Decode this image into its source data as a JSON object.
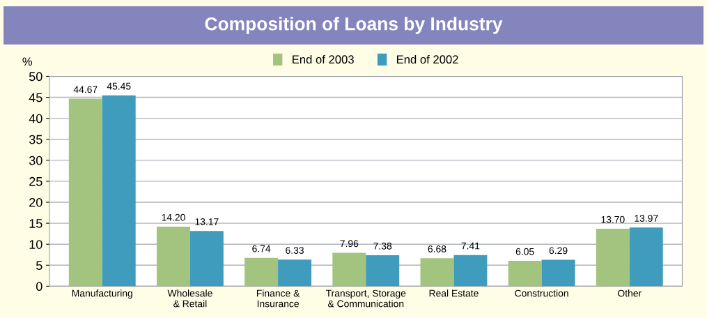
{
  "chart_data": {
    "type": "bar",
    "title": "Composition of Loans by Industry",
    "ylabel": "%",
    "categories": [
      "Manufacturing",
      "Wholesale\n& Retail",
      "Finance &\nInsurance",
      "Transport, Storage\n& Communication",
      "Real Estate",
      "Construction",
      "Other"
    ],
    "series": [
      {
        "name": "End of 2003",
        "color": "#a3c47f",
        "values": [
          44.67,
          14.2,
          6.74,
          7.96,
          6.68,
          6.05,
          13.7
        ],
        "value_labels": [
          "44.67",
          "14.20",
          "6.74",
          "7.96",
          "6.68",
          "6.05",
          "13.70"
        ]
      },
      {
        "name": "End of 2002",
        "color": "#3f9cbc",
        "values": [
          45.45,
          13.17,
          6.33,
          7.38,
          7.41,
          6.29,
          13.97
        ],
        "value_labels": [
          "45.45",
          "13.17",
          "6.33",
          "7.38",
          "7.41",
          "6.29",
          "13.97"
        ]
      }
    ],
    "ylim": [
      0,
      50
    ],
    "yticks": [
      0,
      5,
      10,
      15,
      20,
      25,
      30,
      35,
      40,
      45,
      50
    ],
    "grid": "y",
    "legend": "top"
  }
}
